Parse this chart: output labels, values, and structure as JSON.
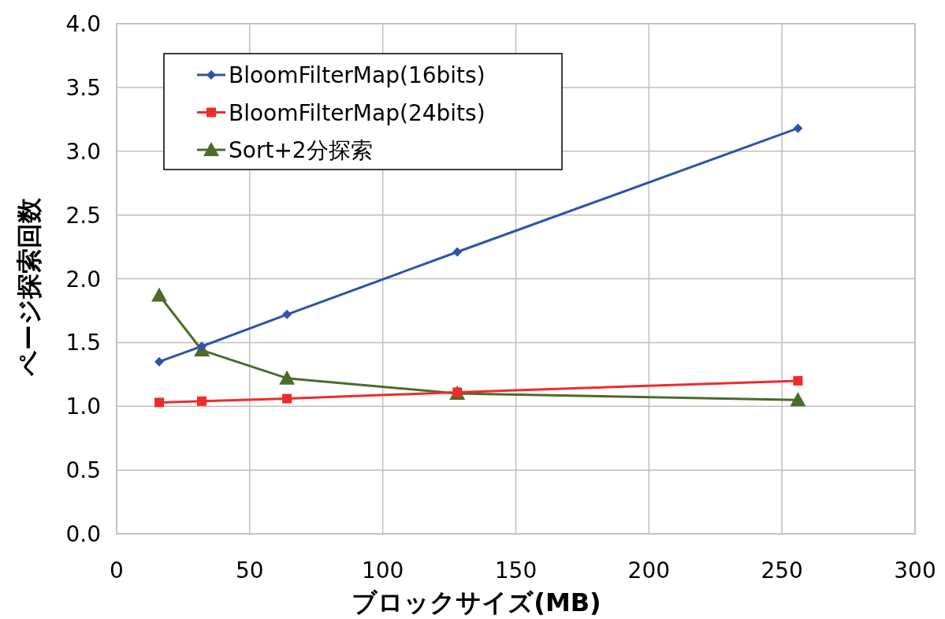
{
  "chart_data": {
    "type": "line",
    "xlabel": "ブロックサイズ(MB)",
    "ylabel": "ページ探索回数",
    "x": [
      16,
      32,
      64,
      128,
      256
    ],
    "xlim": [
      0,
      300
    ],
    "xticks": [
      0,
      50,
      100,
      150,
      200,
      250,
      300
    ],
    "ylim": [
      0,
      4
    ],
    "yticks": [
      {
        "value": 0,
        "label": "0.0"
      },
      {
        "value": 0.5,
        "label": "0.5"
      },
      {
        "value": 1,
        "label": "1.0"
      },
      {
        "value": 1.5,
        "label": "1.5"
      },
      {
        "value": 2,
        "label": "2.0"
      },
      {
        "value": 2.5,
        "label": "2.5"
      },
      {
        "value": 3,
        "label": "3.0"
      },
      {
        "value": 3.5,
        "label": "3.5"
      },
      {
        "value": 4,
        "label": "4.0"
      }
    ],
    "grid": true,
    "legend": "top left",
    "line_style": "solid",
    "series": [
      {
        "name": "BloomFilterMap(16bits)",
        "color": "#2e54a8",
        "marker": "diamond",
        "values": [
          1.35,
          1.47,
          1.72,
          2.21,
          3.18
        ]
      },
      {
        "name": "BloomFilterMap(24bits)",
        "color": "#f02b2b",
        "marker": "square",
        "values": [
          1.03,
          1.04,
          1.06,
          1.11,
          1.2
        ]
      },
      {
        "name": "Sort+2分探索",
        "color": "#4d6b2a",
        "marker": "triangle",
        "values": [
          1.87,
          1.44,
          1.22,
          1.1,
          1.05
        ]
      }
    ]
  }
}
